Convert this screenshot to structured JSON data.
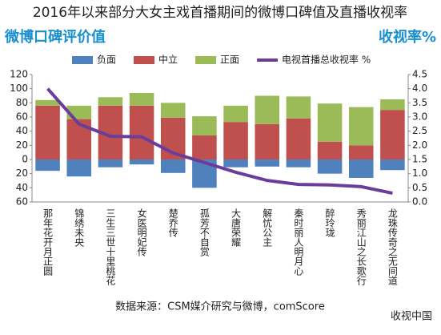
{
  "chart_data": {
    "type": "stacked_bar_line",
    "title": "2016年以来部分大女主戏首播期间的微博口碑值及直播收视率",
    "y_label": "微博口碑评价值",
    "y2_label": "收视率%",
    "source": "数据来源：CSM媒介研究与微博，comScore",
    "watermark": "收视中国",
    "categories": [
      "那年花开月正圆",
      "锦绣未央",
      "三生三世十里桃花",
      "女医明妃传",
      "楚乔传",
      "孤芳不自赏",
      "大唐荣耀",
      "解忧公主",
      "秦时丽人明月心",
      "醉玲珑",
      "秀丽江山之长歌行",
      "龙珠传奇之无间道"
    ],
    "series": [
      {
        "name": "负面",
        "color": "#4f81bd",
        "values": [
          -16,
          -24,
          -11,
          -7,
          -19,
          -40,
          -11,
          -10,
          -11,
          -20,
          -26,
          -15
        ]
      },
      {
        "name": "中立",
        "color": "#c0504d",
        "values": [
          76,
          57,
          76,
          76,
          59,
          34,
          53,
          50,
          58,
          25,
          20,
          70
        ]
      },
      {
        "name": "正面",
        "color": "#9bbb59",
        "values": [
          8,
          19,
          12,
          18,
          21,
          27,
          23,
          40,
          31,
          54,
          54,
          15
        ]
      },
      {
        "name": "电视首播总收视率 %",
        "color": "#6a3d9a",
        "axis": "y2",
        "values": [
          4.0,
          2.75,
          2.32,
          2.3,
          1.73,
          1.39,
          1.05,
          0.76,
          0.62,
          0.6,
          0.54,
          0.31
        ]
      }
    ],
    "ylim": [
      -60,
      120
    ],
    "yticks": [
      {
        "value": -60,
        "label": "60"
      },
      {
        "value": -40,
        "label": "40"
      },
      {
        "value": -20,
        "label": "20"
      },
      0,
      20,
      40,
      60,
      80,
      100,
      120
    ],
    "y2lim": [
      0,
      4.5
    ],
    "y2ticks": [
      {
        "value": 0,
        "label": "0.0"
      },
      0.5,
      {
        "value": 1,
        "label": "1.0"
      },
      1.5,
      {
        "value": 2,
        "label": "2.0"
      },
      2.5,
      {
        "value": 3,
        "label": "3.0"
      },
      3.5,
      {
        "value": 4,
        "label": "4.0"
      },
      4.5
    ]
  }
}
